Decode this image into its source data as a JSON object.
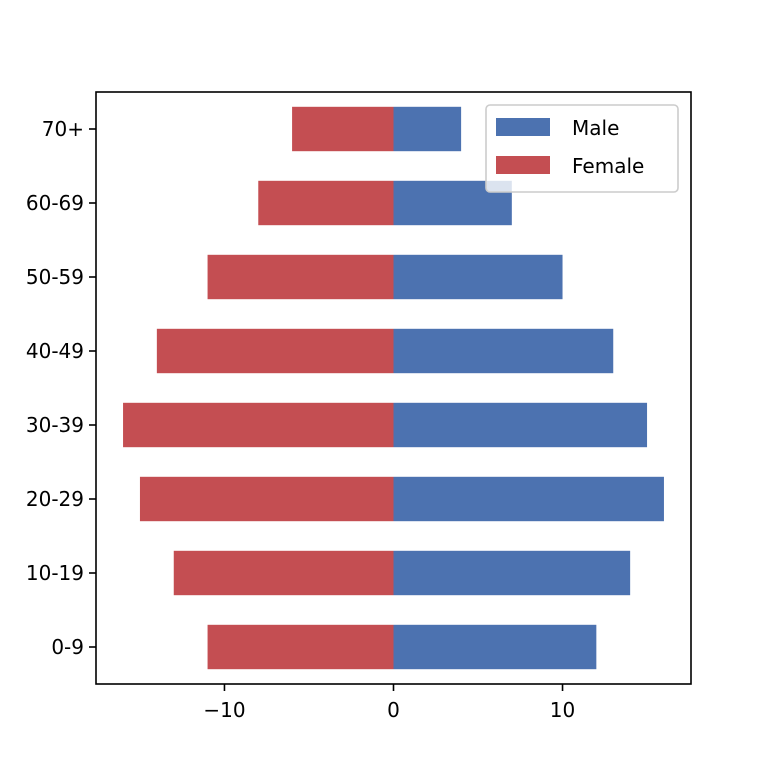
{
  "chart_data": {
    "type": "bar",
    "orientation": "horizontal",
    "categories": [
      "0-9",
      "10-19",
      "20-29",
      "30-39",
      "40-49",
      "50-59",
      "60-69",
      "70+"
    ],
    "series": [
      {
        "name": "Male",
        "values": [
          12,
          14,
          16,
          15,
          13,
          10,
          7,
          4
        ],
        "color": "#4c72b0"
      },
      {
        "name": "Female",
        "values": [
          -11,
          -13,
          -15,
          -16,
          -14,
          -11,
          -8,
          -6
        ],
        "color": "#c44e52"
      }
    ],
    "xticks": [
      -10,
      0,
      10
    ],
    "xtick_labels": [
      "−10",
      "0",
      "10"
    ],
    "xlim": [
      -17.6,
      17.6
    ],
    "title": "",
    "xlabel": "",
    "ylabel": "",
    "grid": false,
    "legend": {
      "position": "top-right"
    }
  }
}
